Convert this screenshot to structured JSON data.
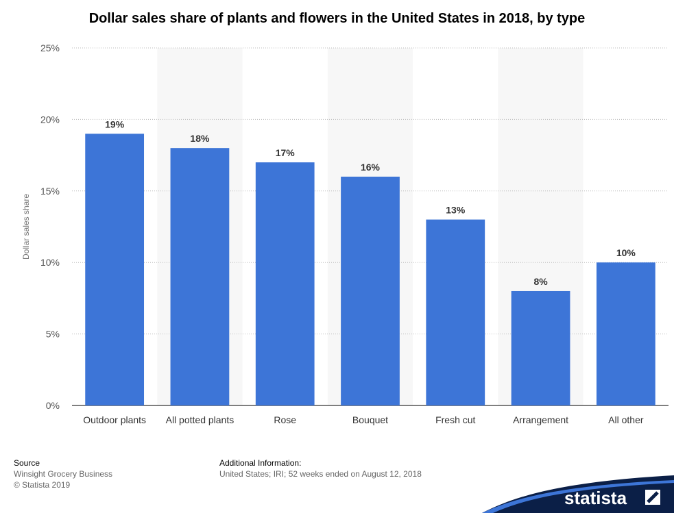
{
  "chart_data": {
    "type": "bar",
    "title": "Dollar sales share of plants and flowers in the United States in 2018, by type",
    "ylabel": "Dollar sales share",
    "categories": [
      "Outdoor plants",
      "All potted plants",
      "Rose",
      "Bouquet",
      "Fresh cut",
      "Arrangement",
      "All other"
    ],
    "values": [
      19,
      18,
      17,
      16,
      13,
      8,
      10
    ],
    "value_labels": [
      "19%",
      "18%",
      "17%",
      "16%",
      "13%",
      "8%",
      "10%"
    ],
    "ylim": [
      0,
      25
    ],
    "yticks": [
      0,
      5,
      10,
      15,
      20,
      25
    ],
    "ytick_labels": [
      "0%",
      "5%",
      "10%",
      "15%",
      "20%",
      "25%"
    ],
    "grid": true,
    "bar_color": "#3d75d7"
  },
  "footer": {
    "source_label": "Source",
    "source_line1": "Winsight Grocery Business",
    "source_line2": "© Statista 2019",
    "info_label": "Additional Information:",
    "info_text": "United States; IRI; 52 weeks ended on August 12, 2018"
  },
  "logo": {
    "text": "statista"
  }
}
